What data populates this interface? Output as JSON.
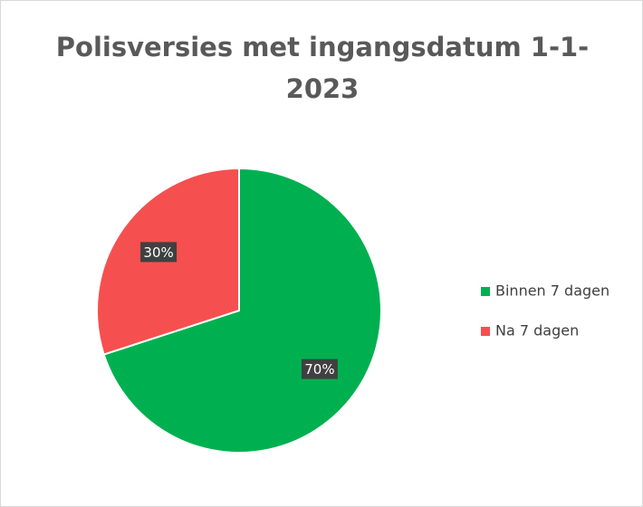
{
  "chart_data": {
    "type": "pie",
    "title": "Polisversies met ingangsdatum 1-1-2023",
    "categories": [
      "Binnen 7 dagen",
      "Na 7 dagen"
    ],
    "values": [
      70,
      30
    ],
    "value_labels": [
      "70%",
      "30%"
    ],
    "colors": [
      "#00b050",
      "#f64f4f"
    ],
    "legend": "right"
  }
}
